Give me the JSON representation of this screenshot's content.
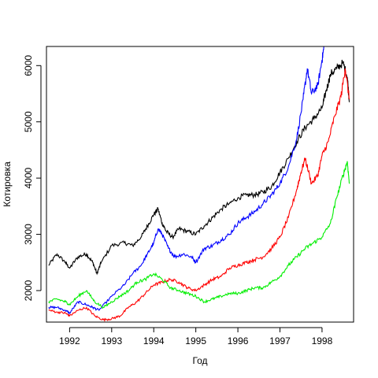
{
  "chart_data": {
    "type": "line",
    "title": "",
    "xlabel": "Год",
    "ylabel": "Котировка",
    "xlim": [
      1991.45,
      1998.75
    ],
    "ylim": [
      1440,
      6340
    ],
    "x_ticks": [
      1992,
      1993,
      1994,
      1995,
      1996,
      1997,
      1998
    ],
    "x_tick_labels": [
      "1992",
      "1993",
      "1994",
      "1995",
      "1996",
      "1997",
      "1998"
    ],
    "y_ticks": [
      2000,
      3000,
      4000,
      5000,
      6000
    ],
    "y_tick_labels": [
      "2000",
      "3000",
      "4000",
      "5000",
      "6000"
    ],
    "grid": false,
    "legend": "none",
    "series": [
      {
        "color": "#000000",
        "x": [
          1991.5,
          1991.7,
          1991.9,
          1992.0,
          1992.2,
          1992.4,
          1992.55,
          1992.65,
          1992.75,
          1993.0,
          1993.3,
          1993.5,
          1993.7,
          1993.85,
          1994.0,
          1994.1,
          1994.2,
          1994.3,
          1994.45,
          1994.6,
          1994.8,
          1995.0,
          1995.2,
          1995.4,
          1995.6,
          1995.8,
          1996.0,
          1996.2,
          1996.4,
          1996.6,
          1996.8,
          1997.0,
          1997.2,
          1997.4,
          1997.6,
          1997.8,
          1998.0,
          1998.1,
          1998.2,
          1998.35,
          1998.5,
          1998.6,
          1998.65
        ],
        "values": [
          2450,
          2650,
          2500,
          2400,
          2600,
          2650,
          2500,
          2300,
          2500,
          2800,
          2850,
          2800,
          2950,
          3150,
          3350,
          3450,
          3200,
          3050,
          2950,
          3100,
          3050,
          3000,
          3150,
          3300,
          3450,
          3550,
          3650,
          3700,
          3700,
          3750,
          3850,
          4100,
          4350,
          4650,
          4900,
          5050,
          5250,
          5550,
          5850,
          5950,
          6050,
          5800,
          5350
        ]
      },
      {
        "color": "#0000ff",
        "x": [
          1991.5,
          1991.7,
          1991.9,
          1992.0,
          1992.2,
          1992.4,
          1992.55,
          1992.7,
          1993.0,
          1993.3,
          1993.5,
          1993.7,
          1993.85,
          1994.0,
          1994.1,
          1994.2,
          1994.35,
          1994.5,
          1994.7,
          1994.9,
          1995.0,
          1995.2,
          1995.4,
          1995.6,
          1995.8,
          1996.0,
          1996.2,
          1996.4,
          1996.6,
          1996.8,
          1997.0,
          1997.2,
          1997.4,
          1997.55,
          1997.65,
          1997.75,
          1997.9,
          1998.0,
          1998.05
        ],
        "values": [
          1700,
          1700,
          1650,
          1600,
          1800,
          1750,
          1700,
          1650,
          1900,
          2100,
          2300,
          2450,
          2650,
          2850,
          3100,
          3000,
          2750,
          2600,
          2650,
          2600,
          2500,
          2750,
          2800,
          2900,
          3000,
          3200,
          3300,
          3400,
          3550,
          3700,
          3900,
          4200,
          4700,
          5400,
          5950,
          5500,
          5650,
          6100,
          6350
        ]
      },
      {
        "color": "#ff0000",
        "x": [
          1991.5,
          1991.7,
          1991.9,
          1992.0,
          1992.2,
          1992.4,
          1992.6,
          1992.8,
          1993.0,
          1993.2,
          1993.4,
          1993.6,
          1993.8,
          1994.0,
          1994.2,
          1994.4,
          1994.6,
          1994.8,
          1995.0,
          1995.2,
          1995.4,
          1995.6,
          1995.8,
          1996.0,
          1996.2,
          1996.4,
          1996.6,
          1996.8,
          1997.0,
          1997.2,
          1997.4,
          1997.5,
          1997.6,
          1997.75,
          1997.9,
          1998.0,
          1998.15,
          1998.3,
          1998.45,
          1998.55,
          1998.65
        ],
        "values": [
          1650,
          1620,
          1600,
          1550,
          1650,
          1700,
          1550,
          1480,
          1500,
          1550,
          1700,
          1800,
          1950,
          2100,
          2150,
          2200,
          2150,
          2050,
          2000,
          2100,
          2200,
          2250,
          2400,
          2450,
          2500,
          2550,
          2600,
          2750,
          2950,
          3300,
          3800,
          4100,
          4350,
          3900,
          4050,
          4400,
          4650,
          5100,
          5450,
          5950,
          5400
        ]
      },
      {
        "color": "#00ee00",
        "x": [
          1991.5,
          1991.7,
          1991.9,
          1992.0,
          1992.2,
          1992.4,
          1992.6,
          1992.8,
          1993.0,
          1993.2,
          1993.4,
          1993.6,
          1993.8,
          1994.0,
          1994.2,
          1994.4,
          1994.6,
          1994.8,
          1995.0,
          1995.2,
          1995.4,
          1995.6,
          1995.8,
          1996.0,
          1996.2,
          1996.4,
          1996.6,
          1996.8,
          1997.0,
          1997.2,
          1997.4,
          1997.6,
          1997.8,
          1998.0,
          1998.2,
          1998.35,
          1998.5,
          1998.6,
          1998.65
        ],
        "values": [
          1800,
          1850,
          1800,
          1750,
          1900,
          2000,
          1800,
          1700,
          1800,
          1900,
          2000,
          2150,
          2200,
          2300,
          2200,
          2050,
          2000,
          1950,
          1900,
          1800,
          1850,
          1900,
          1950,
          1950,
          2000,
          2050,
          2050,
          2150,
          2250,
          2450,
          2600,
          2750,
          2850,
          2950,
          3200,
          3650,
          4050,
          4300,
          3900
        ]
      }
    ]
  }
}
